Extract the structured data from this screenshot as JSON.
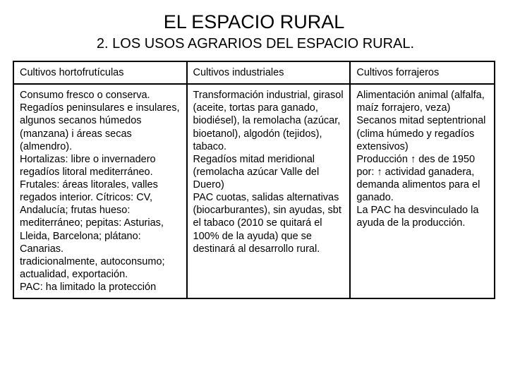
{
  "title": "EL ESPACIO RURAL",
  "subtitle": "2. LOS USOS AGRARIOS DEL ESPACIO RURAL.",
  "table": {
    "headers": [
      "Cultivos hortofrutículas",
      "Cultivos industriales",
      "Cultivos forrajeros"
    ],
    "cells": [
      "Consumo fresco o conserva.\nRegadíos peninsulares e insulares, algunos secanos húmedos (manzana) i áreas secas (almendro).\nHortalizas: libre o invernadero regadíos litoral mediterráneo.\nFrutales: áreas litorales, valles regados interior. Cítricos: CV, Andalucía; frutas hueso: mediterráneo; pepitas: Asturias, Lleida, Barcelona; plátano: Canarias.\ntradicionalmente, autoconsumo; actualidad, exportación.\nPAC: ha limitado la protección",
      "Transformación industrial, girasol (aceite, tortas para ganado, biodiésel), la remolacha (azúcar, bioetanol), algodón (tejidos), tabaco.\nRegadíos mitad meridional (remolacha azúcar Valle del Duero)\nPAC cuotas, salidas alternativas (biocarburantes), sin ayudas, sbt el tabaco (2010 se quitará el 100% de la ayuda) que se destinará al desarrollo rural.",
      "Alimentación animal (alfalfa, maíz forrajero, veza)\nSecanos mitad septentrional (clima húmedo y regadíos extensivos)\nProducción ↑ des de 1950 por: ↑ actividad ganadera, demanda alimentos para el ganado.\nLa PAC ha desvinculado la ayuda de la producción."
    ]
  },
  "styles": {
    "background_color": "#ffffff",
    "text_color": "#000000",
    "border_color": "#000000",
    "title_fontsize": 27,
    "subtitle_fontsize": 20,
    "cell_fontsize": 14.5
  }
}
